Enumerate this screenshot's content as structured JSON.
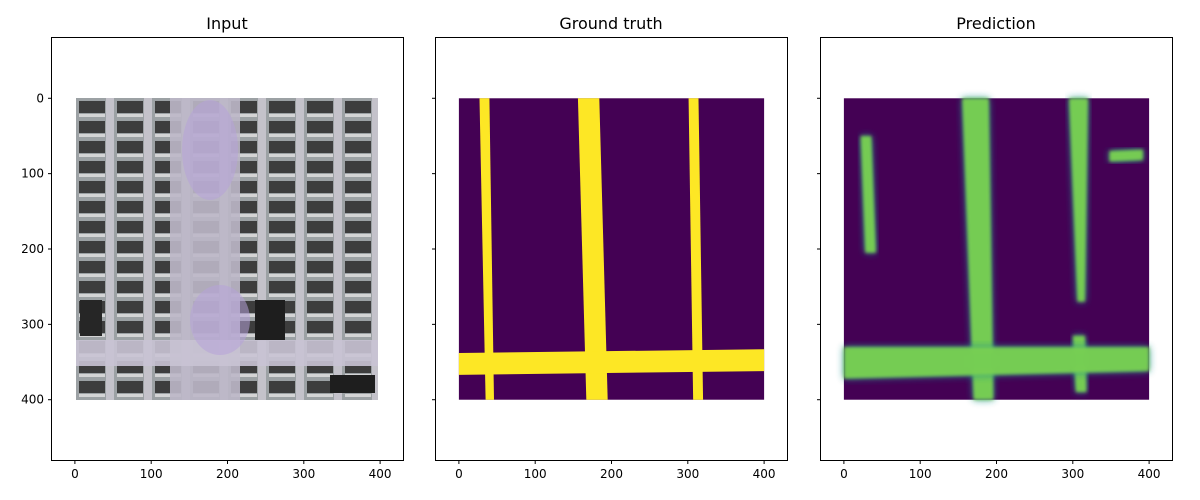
{
  "chart_data": [
    {
      "type": "image",
      "title": "Input",
      "xlim": [
        -30,
        430
      ],
      "ylim": [
        480,
        -80
      ],
      "xticks": [
        0,
        100,
        200,
        300,
        400
      ],
      "yticks": [
        0,
        100,
        200,
        300,
        400
      ],
      "show_y_tick_labels": true,
      "image_extent": [
        0,
        400,
        0,
        400
      ],
      "content": "aerial photo of urban blocks"
    },
    {
      "type": "image",
      "title": "Ground truth",
      "xlim": [
        -30,
        430
      ],
      "ylim": [
        480,
        -80
      ],
      "xticks": [
        0,
        100,
        200,
        300,
        400
      ],
      "yticks": [
        0,
        100,
        200,
        300,
        400
      ],
      "show_y_tick_labels": false,
      "image_extent": [
        0,
        400,
        0,
        400
      ],
      "colormap": {
        "background": "#440154",
        "road": "#fde725"
      },
      "roads": [
        {
          "points": [
            [
              27,
              0
            ],
            [
              40,
              0
            ],
            [
              46,
              400
            ],
            [
              35,
              400
            ]
          ]
        },
        {
          "points": [
            [
              156,
              0
            ],
            [
              184,
              0
            ],
            [
              195,
              400
            ],
            [
              167,
              400
            ]
          ]
        },
        {
          "points": [
            [
              301,
              0
            ],
            [
              314,
              0
            ],
            [
              320,
              400
            ],
            [
              307,
              400
            ]
          ]
        },
        {
          "points": [
            [
              0,
              338
            ],
            [
              400,
              333
            ],
            [
              400,
              362
            ],
            [
              0,
              367
            ]
          ]
        }
      ]
    },
    {
      "type": "image",
      "title": "Prediction",
      "xlim": [
        -30,
        430
      ],
      "ylim": [
        480,
        -80
      ],
      "xticks": [
        0,
        100,
        200,
        300,
        400
      ],
      "yticks": [
        0,
        100,
        200,
        300,
        400
      ],
      "show_y_tick_labels": false,
      "image_extent": [
        0,
        400,
        0,
        400
      ],
      "colormap": {
        "background": "#440154",
        "mid": "#21918c",
        "high": "#7ad151",
        "peak": "#fde725"
      },
      "roads": [
        {
          "points": [
            [
              22,
              50
            ],
            [
              36,
              50
            ],
            [
              42,
              205
            ],
            [
              28,
              205
            ]
          ]
        },
        {
          "points": [
            [
              155,
              0
            ],
            [
              190,
              0
            ],
            [
              196,
              400
            ],
            [
              170,
              400
            ]
          ]
        },
        {
          "points": [
            [
              295,
              0
            ],
            [
              320,
              0
            ],
            [
              316,
              270
            ],
            [
              306,
              270
            ]
          ]
        },
        {
          "points": [
            [
              300,
              315
            ],
            [
              316,
              315
            ],
            [
              318,
              390
            ],
            [
              304,
              390
            ]
          ]
        },
        {
          "points": [
            [
              0,
              330
            ],
            [
              400,
              330
            ],
            [
              400,
              362
            ],
            [
              0,
              372
            ]
          ]
        },
        {
          "points": [
            [
              348,
              70
            ],
            [
              392,
              68
            ],
            [
              392,
              82
            ],
            [
              348,
              84
            ]
          ]
        }
      ]
    }
  ]
}
